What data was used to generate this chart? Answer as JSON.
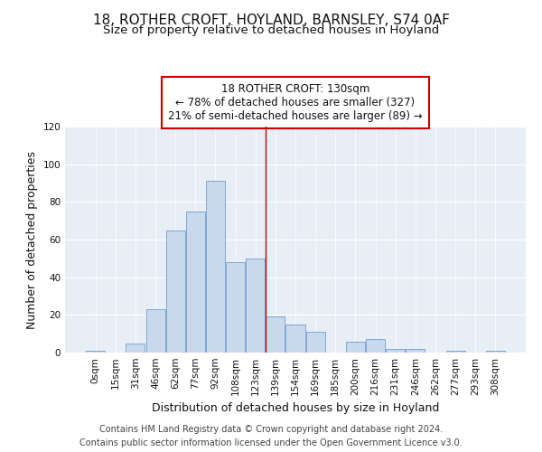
{
  "title": "18, ROTHER CROFT, HOYLAND, BARNSLEY, S74 0AF",
  "subtitle": "Size of property relative to detached houses in Hoyland",
  "xlabel": "Distribution of detached houses by size in Hoyland",
  "ylabel": "Number of detached properties",
  "bar_labels": [
    "0sqm",
    "15sqm",
    "31sqm",
    "46sqm",
    "62sqm",
    "77sqm",
    "92sqm",
    "108sqm",
    "123sqm",
    "139sqm",
    "154sqm",
    "169sqm",
    "185sqm",
    "200sqm",
    "216sqm",
    "231sqm",
    "246sqm",
    "262sqm",
    "277sqm",
    "293sqm",
    "308sqm"
  ],
  "bar_values": [
    1,
    0,
    5,
    23,
    65,
    75,
    91,
    48,
    50,
    19,
    15,
    11,
    0,
    6,
    7,
    2,
    2,
    0,
    1,
    0,
    1
  ],
  "bar_color": "#c8d9ee",
  "bar_edge_color": "#7fa8d0",
  "ylim": [
    0,
    120
  ],
  "yticks": [
    0,
    20,
    40,
    60,
    80,
    100,
    120
  ],
  "vline_x": 8.5,
  "vline_color": "#cc0000",
  "annotation_title": "18 ROTHER CROFT: 130sqm",
  "annotation_line1": "← 78% of detached houses are smaller (327)",
  "annotation_line2": "21% of semi-detached houses are larger (89) →",
  "annotation_box_color": "#ffffff",
  "annotation_box_edge": "#cc0000",
  "footer_line1": "Contains HM Land Registry data © Crown copyright and database right 2024.",
  "footer_line2": "Contains public sector information licensed under the Open Government Licence v3.0.",
  "fig_bg_color": "#ffffff",
  "plot_bg_color": "#e8eef5",
  "title_fontsize": 11,
  "subtitle_fontsize": 9.5,
  "axis_label_fontsize": 9,
  "tick_fontsize": 7.5,
  "annotation_fontsize": 8.5,
  "footer_fontsize": 7
}
